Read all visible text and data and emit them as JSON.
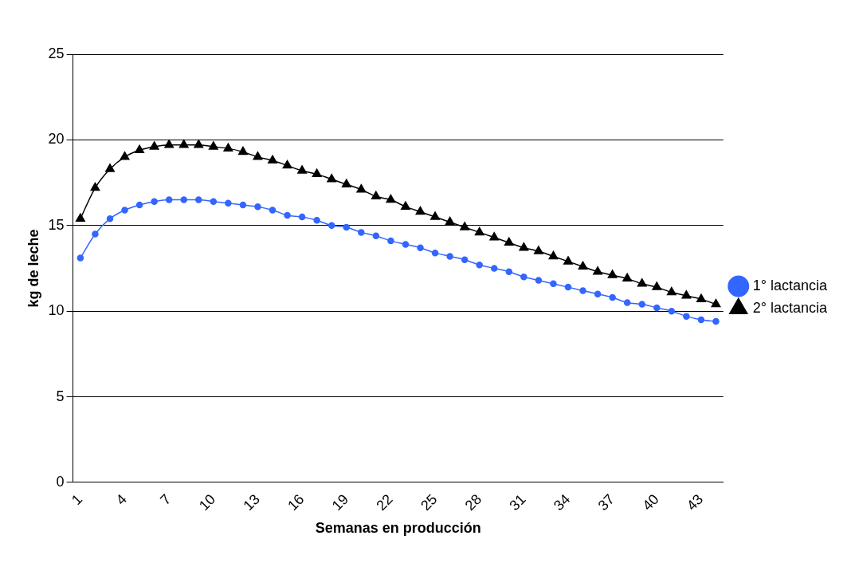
{
  "chart_data": {
    "type": "line",
    "xlabel": "Semanas en producción",
    "ylabel": "kg de leche",
    "categories": [
      "1",
      null,
      null,
      "4",
      null,
      null,
      "7",
      null,
      null,
      "10",
      null,
      null,
      "13",
      null,
      null,
      "16",
      null,
      null,
      "19",
      null,
      null,
      "22",
      null,
      null,
      "25",
      null,
      null,
      "28",
      null,
      null,
      "31",
      null,
      null,
      "34",
      null,
      null,
      "37",
      null,
      null,
      "40",
      null,
      null,
      "43",
      null
    ],
    "series": [
      {
        "name": "1° lactancia",
        "color": "#3366ff",
        "marker": "circle",
        "values": [
          13.1,
          14.5,
          15.4,
          15.9,
          16.2,
          16.4,
          16.5,
          16.5,
          16.5,
          16.4,
          16.3,
          16.2,
          16.1,
          15.9,
          15.6,
          15.5,
          15.3,
          15.0,
          14.9,
          14.6,
          14.4,
          14.1,
          13.9,
          13.7,
          13.4,
          13.2,
          13.0,
          12.7,
          12.5,
          12.3,
          12.0,
          11.8,
          11.6,
          11.4,
          11.2,
          11.0,
          10.8,
          10.5,
          10.4,
          10.2,
          10.0,
          9.7,
          9.5,
          9.4
        ]
      },
      {
        "name": "2° lactancia",
        "color": "#000000",
        "marker": "triangle",
        "values": [
          15.4,
          17.2,
          18.3,
          19.0,
          19.4,
          19.6,
          19.7,
          19.7,
          19.7,
          19.6,
          19.5,
          19.3,
          19.0,
          18.8,
          18.5,
          18.2,
          18.0,
          17.7,
          17.4,
          17.1,
          16.7,
          16.5,
          16.1,
          15.8,
          15.5,
          15.2,
          14.9,
          14.6,
          14.3,
          14.0,
          13.7,
          13.5,
          13.2,
          12.9,
          12.6,
          12.3,
          12.1,
          11.9,
          11.6,
          11.4,
          11.1,
          10.9,
          10.7,
          10.4
        ]
      }
    ],
    "ylim": [
      0,
      25
    ],
    "yticks": [
      0,
      5,
      10,
      15,
      20,
      25
    ],
    "grid": "y",
    "legend": "right"
  }
}
